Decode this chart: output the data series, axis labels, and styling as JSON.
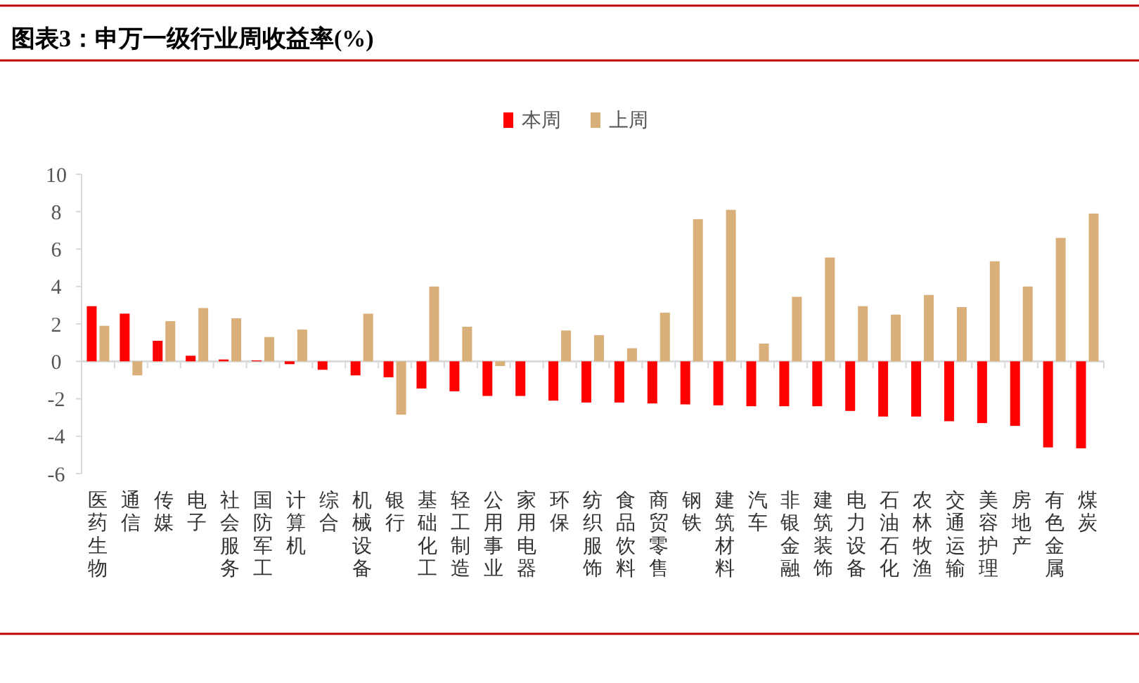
{
  "chart_data": {
    "type": "bar",
    "title": "图表3：申万一级行业周收益率(%)",
    "categories": [
      "医药生物",
      "通信",
      "传媒",
      "电子",
      "社会服务",
      "国防军工",
      "计算机",
      "综合",
      "机械设备",
      "银行",
      "基础化工",
      "轻工制造",
      "公用事业",
      "家用电器",
      "环保",
      "纺织服饰",
      "食品饮料",
      "商贸零售",
      "钢铁",
      "建筑材料",
      "汽车",
      "非银金融",
      "建筑装饰",
      "电力设备",
      "石油石化",
      "农林牧渔",
      "交通运输",
      "美容护理",
      "房地产",
      "有色金属",
      "煤炭"
    ],
    "series": [
      {
        "name": "本周",
        "color": "#fe0000",
        "values": [
          2.95,
          2.55,
          1.1,
          0.3,
          0.1,
          0.05,
          -0.15,
          -0.45,
          -0.75,
          -0.85,
          -1.45,
          -1.6,
          -1.85,
          -1.85,
          -2.1,
          -2.2,
          -2.2,
          -2.25,
          -2.3,
          -2.35,
          -2.4,
          -2.4,
          -2.4,
          -2.65,
          -2.95,
          -2.95,
          -3.2,
          -3.3,
          -3.45,
          -4.6,
          -4.65
        ]
      },
      {
        "name": "上周",
        "color": "#d9b07a",
        "values": [
          1.9,
          -0.75,
          2.15,
          2.85,
          2.3,
          1.3,
          1.7,
          0,
          2.55,
          -2.85,
          4.0,
          1.85,
          -0.25,
          0,
          1.65,
          1.4,
          0.7,
          2.6,
          7.6,
          8.1,
          0.95,
          3.45,
          5.55,
          2.95,
          2.5,
          3.55,
          2.9,
          5.35,
          4.0,
          6.6,
          7.9
        ]
      }
    ],
    "ylim": [
      -6,
      10
    ],
    "yticks": [
      -6,
      -4,
      -2,
      0,
      2,
      4,
      6,
      8,
      10
    ],
    "legend": "top"
  }
}
